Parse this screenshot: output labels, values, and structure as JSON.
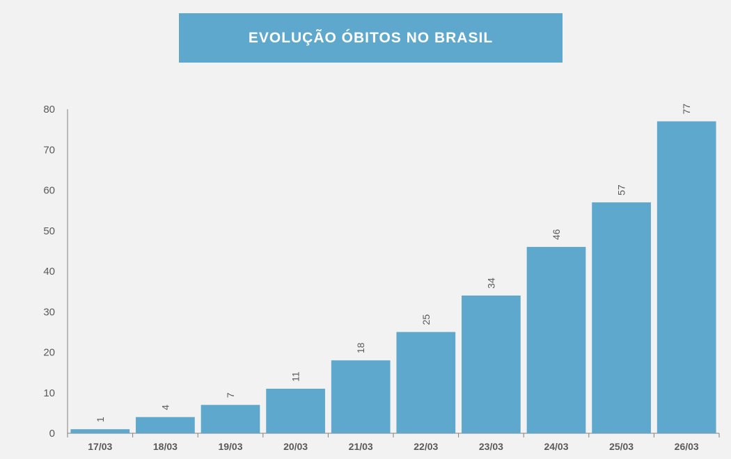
{
  "colors": {
    "background": "#f2f2f2",
    "accent": "#5fa8cd",
    "axis": "#808080",
    "text": "#595959"
  },
  "chart_data": {
    "type": "bar",
    "title": "EVOLUÇÃO ÓBITOS NO BRASIL",
    "categories": [
      "17/03",
      "18/03",
      "19/03",
      "20/03",
      "21/03",
      "22/03",
      "23/03",
      "24/03",
      "25/03",
      "26/03"
    ],
    "values": [
      1,
      4,
      7,
      11,
      18,
      25,
      34,
      46,
      57,
      77
    ],
    "ylim": [
      0,
      80
    ],
    "yticks": [
      0,
      10,
      20,
      30,
      40,
      50,
      60,
      70,
      80
    ],
    "data_labels": true,
    "data_label_rotation": "vertical",
    "grid": false,
    "legend": "none"
  }
}
